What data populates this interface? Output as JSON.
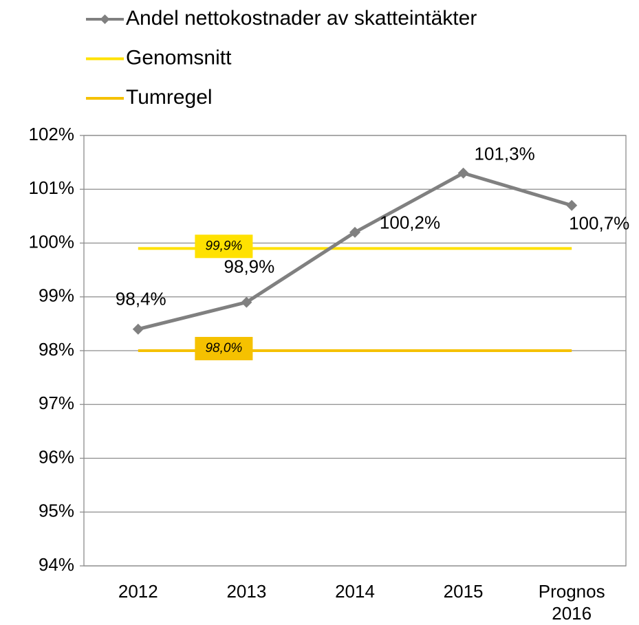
{
  "chart_data": {
    "type": "line",
    "categories": [
      "2012",
      "2013",
      "2014",
      "2015",
      "Prognos 2016"
    ],
    "series": [
      {
        "name": "Andel nettokostnader av skatteintäkter",
        "color": "#808080",
        "marker": "diamond",
        "values": [
          98.4,
          98.9,
          100.2,
          101.3,
          100.7
        ],
        "value_labels": [
          "98,4%",
          "98,9%",
          "100,2%",
          "101,3%",
          "100,7%"
        ]
      },
      {
        "name": "Genomsnitt",
        "color": "#ffe100",
        "values": [
          99.9,
          99.9,
          99.9,
          99.9,
          99.9
        ],
        "value_labels": [
          null,
          "99,9%",
          null,
          null,
          null
        ]
      },
      {
        "name": "Tumregel",
        "color": "#f5c100",
        "values": [
          98.0,
          98.0,
          98.0,
          98.0,
          98.0
        ],
        "value_labels": [
          null,
          "98,0%",
          null,
          null,
          null
        ]
      }
    ],
    "ylim": [
      94,
      102
    ],
    "yticks": [
      {
        "value": 94,
        "label": "94%"
      },
      {
        "value": 95,
        "label": "95%"
      },
      {
        "value": 96,
        "label": "96%"
      },
      {
        "value": 97,
        "label": "97%"
      },
      {
        "value": 98,
        "label": "98%"
      },
      {
        "value": 99,
        "label": "99%"
      },
      {
        "value": 100,
        "label": "100%"
      },
      {
        "value": 101,
        "label": "101%"
      },
      {
        "value": 102,
        "label": "102%"
      }
    ],
    "grid": true,
    "legend": "top"
  }
}
